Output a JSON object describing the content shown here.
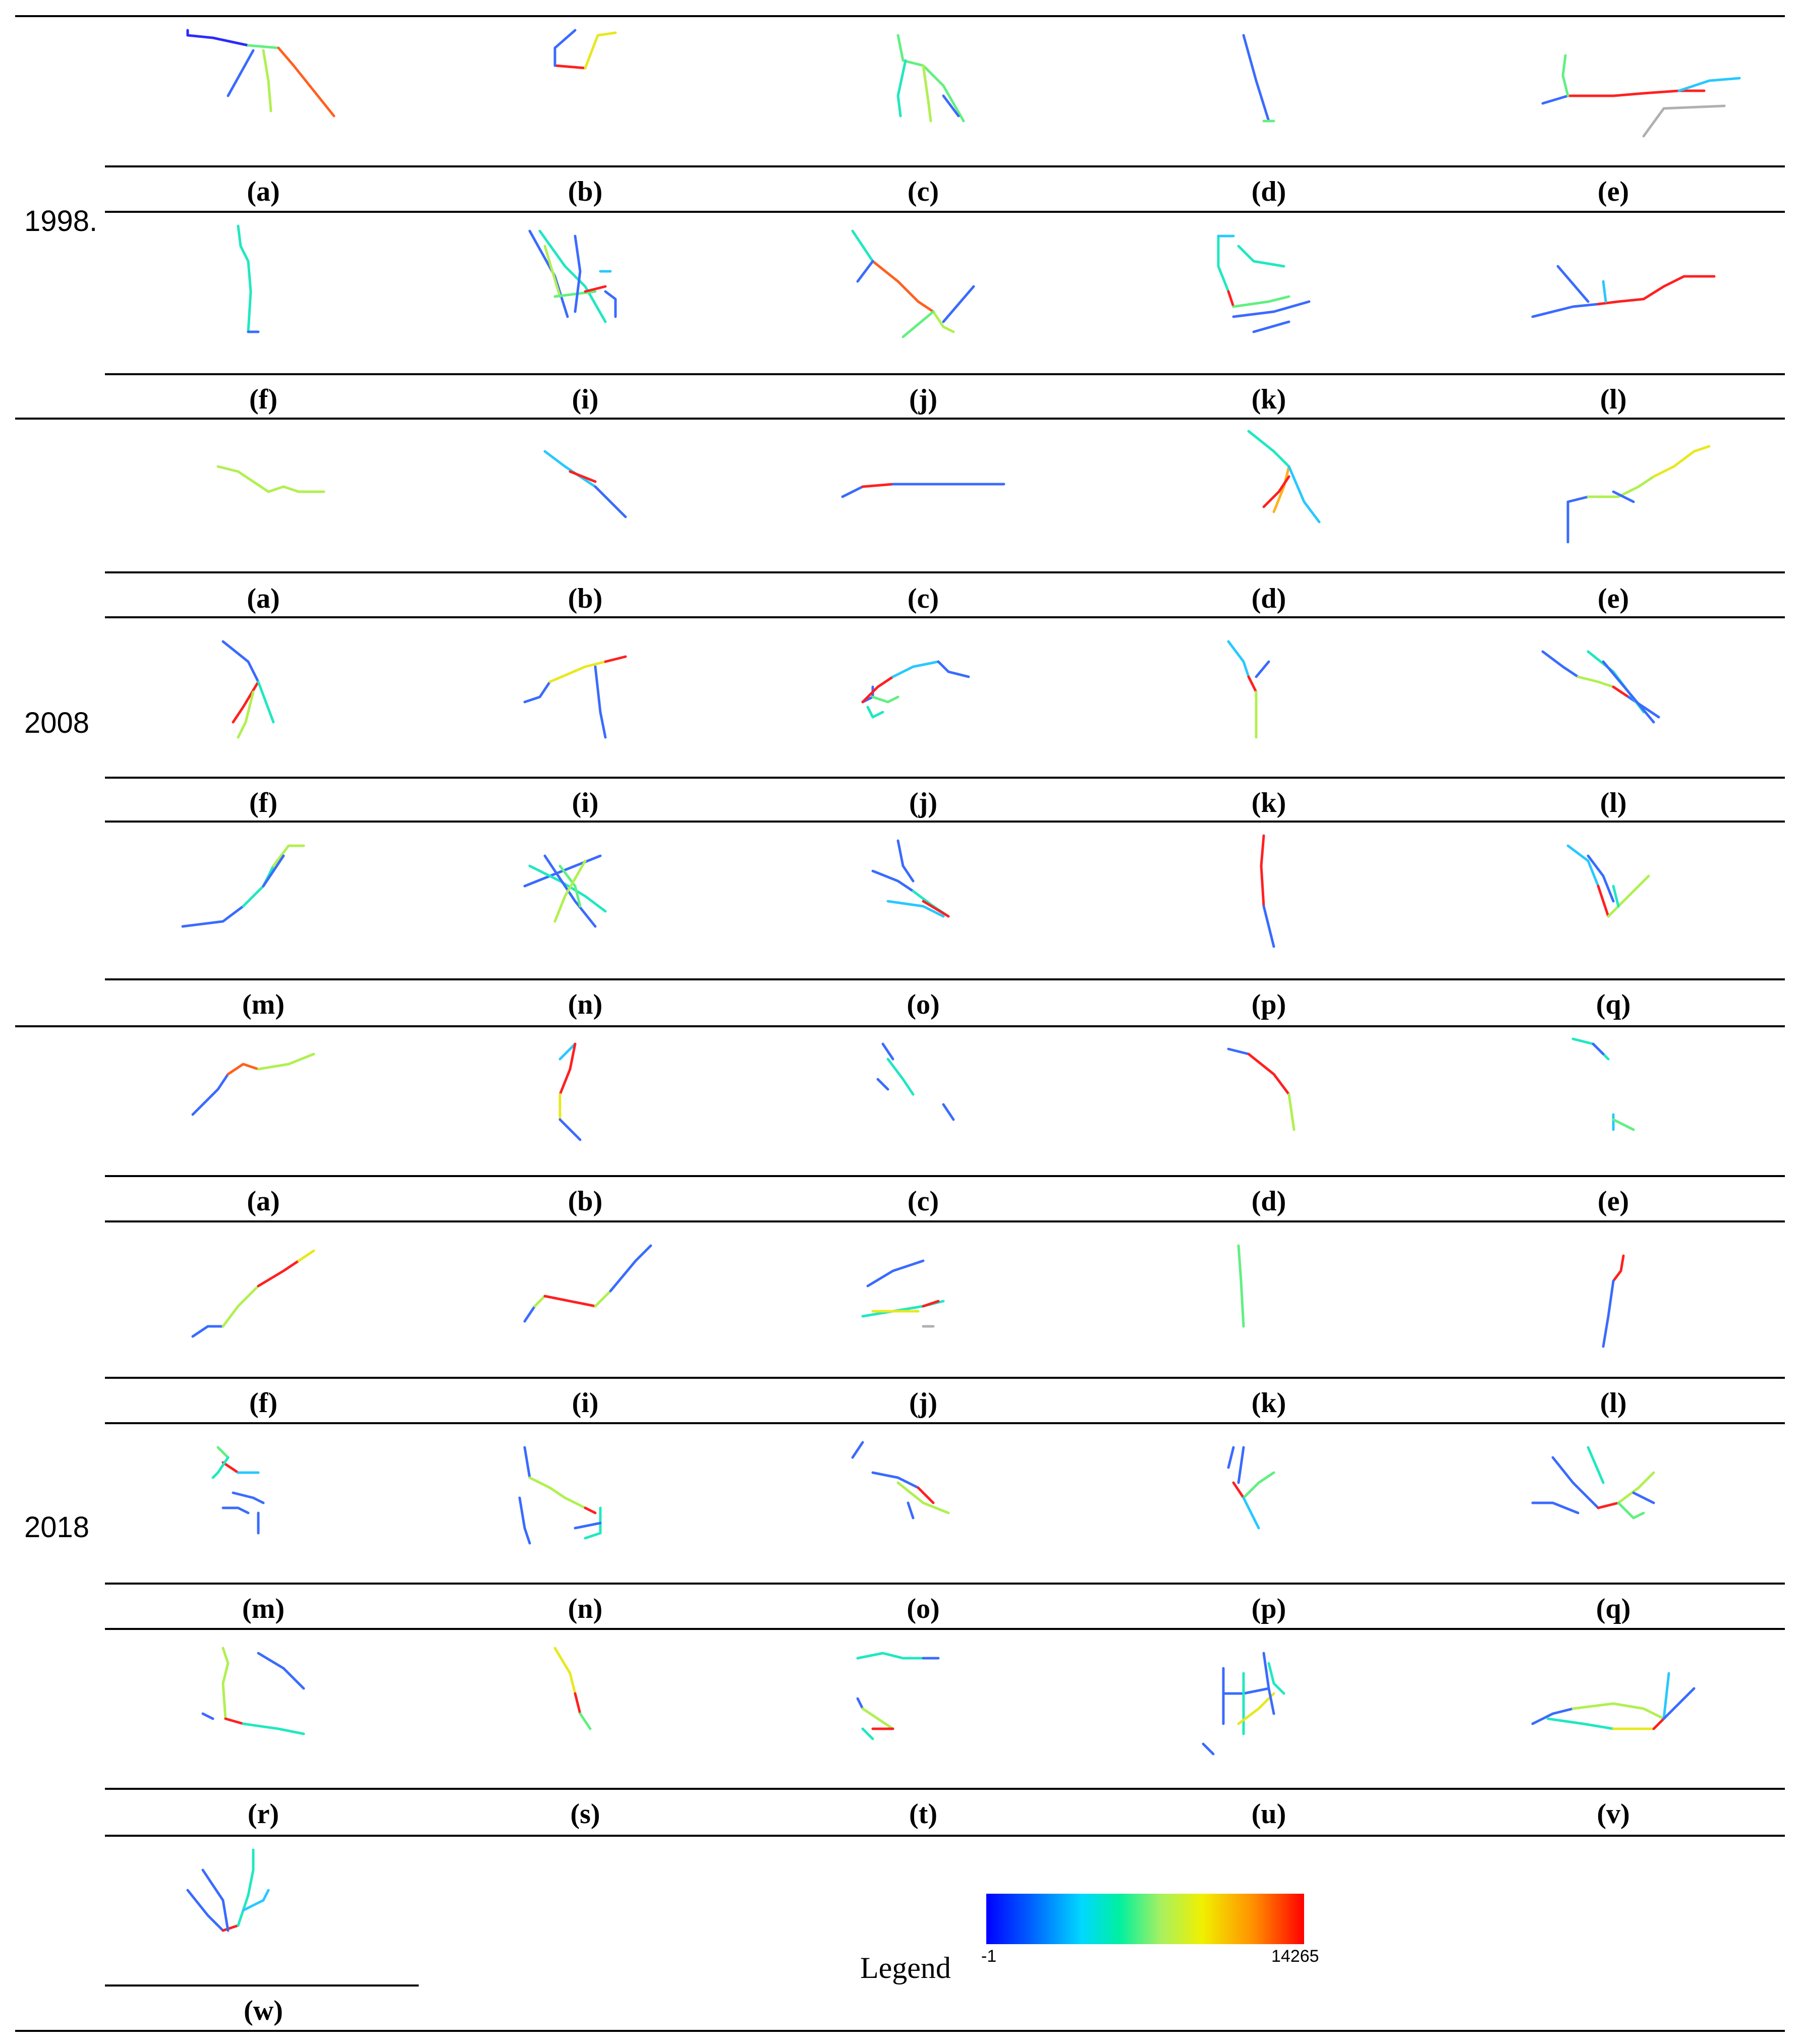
{
  "figure": {
    "sections": [
      {
        "year": "1998.",
        "rows": [
          [
            "(a)",
            "(b)",
            "(c)",
            "(d)",
            "(e)"
          ],
          [
            "(f)",
            "(i)",
            "(j)",
            "(k)",
            "(l)"
          ]
        ]
      },
      {
        "year": "2008",
        "rows": [
          [
            "(a)",
            "(b)",
            "(c)",
            "(d)",
            "(e)"
          ],
          [
            "(f)",
            "(i)",
            "(j)",
            "(k)",
            "(l)"
          ],
          [
            "(m)",
            "(n)",
            "(o)",
            "(p)",
            "(q)"
          ]
        ]
      },
      {
        "year": "2018",
        "rows": [
          [
            "(a)",
            "(b)",
            "(c)",
            "(d)",
            "(e)"
          ],
          [
            "(f)",
            "(i)",
            "(j)",
            "(k)",
            "(l)"
          ],
          [
            "(m)",
            "(n)",
            "(o)",
            "(p)",
            "(q)"
          ],
          [
            "(r)",
            "(s)",
            "(t)",
            "(u)",
            "(v)"
          ],
          [
            "(w)"
          ]
        ]
      }
    ],
    "legend": {
      "title": "Legend",
      "min_label": "-1",
      "max_label": "14265",
      "colors": [
        "#0000ff",
        "#00d8ff",
        "#00f0a0",
        "#f0f000",
        "#ff9000",
        "#ff0000"
      ]
    }
  }
}
